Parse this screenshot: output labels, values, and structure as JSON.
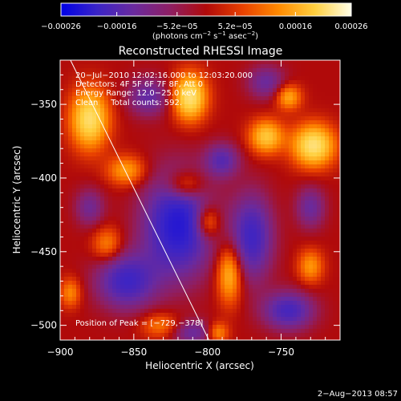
{
  "chart_data": {
    "type": "heatmap",
    "title": "Reconstructed RHESSI Image",
    "xlabel": "Heliocentric X (arcsec)",
    "ylabel": "Heliocentric Y (arcsec)",
    "xlim": [
      -900,
      -710
    ],
    "ylim": [
      -510,
      -320
    ],
    "x_ticks": [
      {
        "value": -900,
        "label": "−900"
      },
      {
        "value": -850,
        "label": "−850"
      },
      {
        "value": -800,
        "label": "−800"
      },
      {
        "value": -750,
        "label": "−750"
      }
    ],
    "y_ticks": [
      {
        "value": -350,
        "label": "−350"
      },
      {
        "value": -400,
        "label": "−400"
      },
      {
        "value": -450,
        "label": "−450"
      },
      {
        "value": -500,
        "label": "−500"
      }
    ],
    "colorbar": {
      "range": [
        -0.00026,
        0.00026
      ],
      "tick_values": [
        -0.00026,
        -0.00016,
        -5.2e-05,
        5.2e-05,
        0.00016,
        0.00026
      ],
      "tick_labels": [
        "−0.00026",
        "−0.00016",
        "−5.2e−05",
        "5.2e−05",
        "0.00016",
        "0.00026"
      ],
      "unit_parts": [
        "(photons cm",
        "−2",
        " s",
        "−1",
        " asec",
        "−2",
        ")"
      ],
      "colors": [
        "#0000e6",
        "#3a24c6",
        "#6a2a9e",
        "#8e1f64",
        "#b00a0a",
        "#e84000",
        "#ff8a00",
        "#ffd040",
        "#ffffe8"
      ]
    },
    "annotations": {
      "time": "20−Jul−2010 12:02:16.000 to 12:03:20.000",
      "detectors": "Detectors: 4F 5F 6F 7F 8F, Att 0",
      "energy": "Energy Range: 12.0−25.0 keV",
      "clean": "Clean     Total counts: 592.",
      "peak": "Position of Peak = [−729,−378]"
    },
    "limb_line": {
      "from": [
        -893,
        -320
      ],
      "to": [
        -799,
        -510
      ]
    },
    "blobs": [
      {
        "x": -820,
        "y": -432,
        "sx": 16,
        "sy": 24,
        "v": -1.0
      },
      {
        "x": -855,
        "y": -470,
        "sx": 14,
        "sy": 13,
        "v": -0.75
      },
      {
        "x": -770,
        "y": -440,
        "sx": 10,
        "sy": 20,
        "v": -0.75
      },
      {
        "x": -745,
        "y": -490,
        "sx": 12,
        "sy": 9,
        "v": -0.7
      },
      {
        "x": -790,
        "y": -388,
        "sx": 8,
        "sy": 8,
        "v": -0.55
      },
      {
        "x": -840,
        "y": -345,
        "sx": 10,
        "sy": 9,
        "v": -0.5
      },
      {
        "x": -760,
        "y": -335,
        "sx": 9,
        "sy": 8,
        "v": -0.45
      },
      {
        "x": -730,
        "y": -420,
        "sx": 7,
        "sy": 10,
        "v": -0.45
      },
      {
        "x": -880,
        "y": -420,
        "sx": 7,
        "sy": 9,
        "v": -0.4
      },
      {
        "x": -810,
        "y": -505,
        "sx": 10,
        "sy": 6,
        "v": -0.45
      },
      {
        "x": -880,
        "y": -360,
        "sx": 9,
        "sy": 14,
        "v": 0.95
      },
      {
        "x": -812,
        "y": -345,
        "sx": 8,
        "sy": 11,
        "v": 1.0
      },
      {
        "x": -728,
        "y": -378,
        "sx": 10,
        "sy": 10,
        "v": 1.0
      },
      {
        "x": -760,
        "y": -372,
        "sx": 8,
        "sy": 8,
        "v": 0.75
      },
      {
        "x": -855,
        "y": -395,
        "sx": 9,
        "sy": 7,
        "v": 0.55
      },
      {
        "x": -815,
        "y": -405,
        "sx": 9,
        "sy": 7,
        "v": 0.55
      },
      {
        "x": -785,
        "y": -465,
        "sx": 6,
        "sy": 14,
        "v": 0.7
      },
      {
        "x": -800,
        "y": -430,
        "sx": 6,
        "sy": 8,
        "v": 0.6
      },
      {
        "x": -730,
        "y": -460,
        "sx": 6,
        "sy": 8,
        "v": 0.5
      },
      {
        "x": -868,
        "y": -445,
        "sx": 7,
        "sy": 8,
        "v": 0.45
      },
      {
        "x": -832,
        "y": -500,
        "sx": 9,
        "sy": 6,
        "v": 0.4
      },
      {
        "x": -893,
        "y": -478,
        "sx": 5,
        "sy": 7,
        "v": 0.45
      },
      {
        "x": -745,
        "y": -345,
        "sx": 6,
        "sy": 6,
        "v": 0.6
      },
      {
        "x": -793,
        "y": -505,
        "sx": 5,
        "sy": 5,
        "v": 0.5
      }
    ]
  },
  "footer": {
    "date": "2−Aug−2013 08:57"
  }
}
